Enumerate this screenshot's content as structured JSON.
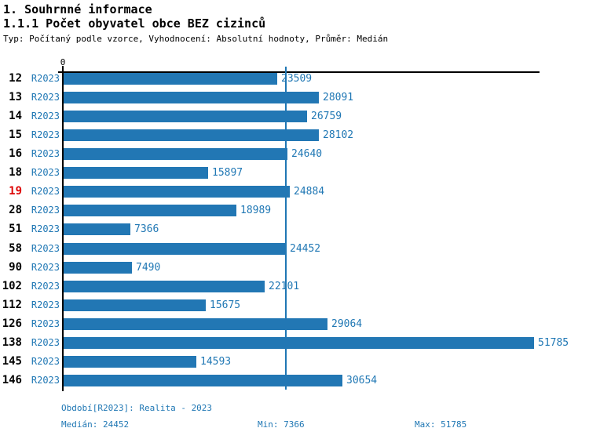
{
  "header": {
    "title": "1. Souhrnné informace",
    "subtitle": "1.1.1 Počet obyvatel obce BEZ cizinců",
    "meta": "Typ: Počítaný podle vzorce, Vyhodnocení: Absolutní hodnoty, Průměr: Medián"
  },
  "chart_data": {
    "type": "bar",
    "orientation": "horizontal",
    "categories": [
      "12",
      "13",
      "14",
      "15",
      "16",
      "18",
      "19",
      "28",
      "51",
      "58",
      "90",
      "102",
      "112",
      "126",
      "138",
      "145",
      "146"
    ],
    "values": [
      23509,
      28091,
      26759,
      28102,
      24640,
      15897,
      24884,
      18989,
      7366,
      24452,
      7490,
      22101,
      15675,
      29064,
      51785,
      14593,
      30654
    ],
    "series_label": "R2023",
    "highlighted_category": "19",
    "zero_label": "0",
    "median_value": 24452,
    "min_value": 7366,
    "max_value": 51785,
    "xlim": [
      0,
      52500
    ],
    "grid": "none",
    "legend": "none",
    "bar_color": "#2277b4",
    "label_color": "#1f77b4",
    "median_line_color": "#1f77b4",
    "highlight_color": "#dd0000",
    "axis_color": "#000000"
  },
  "footer": {
    "period": "Období[R2023]: Realita - 2023",
    "median": "Medián: 24452",
    "min": "Min: 7366",
    "max": "Max: 51785"
  }
}
